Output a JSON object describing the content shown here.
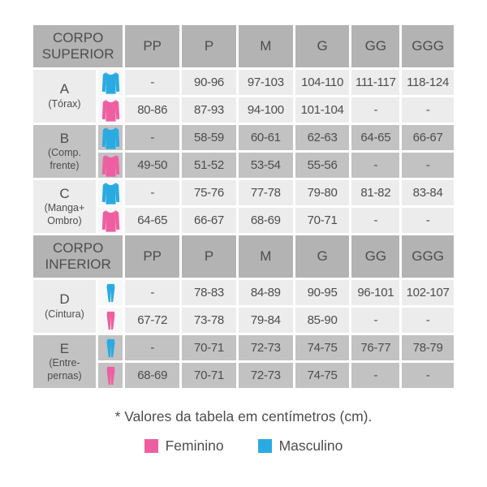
{
  "chart_data": {
    "type": "table",
    "sizes": [
      "PP",
      "P",
      "M",
      "G",
      "GG",
      "GGG"
    ],
    "sections": [
      {
        "header": "CORPO SUPERIOR",
        "rows": [
          {
            "letter": "A",
            "sub": "(Tórax)",
            "garment": "long-sleeve-shirt",
            "masculino": [
              "-",
              "90-96",
              "97-103",
              "104-110",
              "111-117",
              "118-124"
            ],
            "feminino": [
              "80-86",
              "87-93",
              "94-100",
              "101-104",
              "-",
              "-"
            ]
          },
          {
            "letter": "B",
            "sub": "(Comp.\nfrente)",
            "garment": "long-sleeve-shirt",
            "masculino": [
              "-",
              "58-59",
              "60-61",
              "62-63",
              "64-65",
              "66-67"
            ],
            "feminino": [
              "49-50",
              "51-52",
              "53-54",
              "55-56",
              "-",
              "-"
            ]
          },
          {
            "letter": "C",
            "sub": "(Manga+\nOmbro)",
            "garment": "long-sleeve-shirt",
            "masculino": [
              "-",
              "75-76",
              "77-78",
              "79-80",
              "81-82",
              "83-84"
            ],
            "feminino": [
              "64-65",
              "66-67",
              "68-69",
              "70-71",
              "-",
              "-"
            ]
          }
        ]
      },
      {
        "header": "CORPO INFERIOR",
        "rows": [
          {
            "letter": "D",
            "sub": "(Cintura)",
            "garment": "leggings",
            "masculino": [
              "-",
              "78-83",
              "84-89",
              "90-95",
              "96-101",
              "102-107"
            ],
            "feminino": [
              "67-72",
              "73-78",
              "79-84",
              "85-90",
              "-",
              "-"
            ]
          },
          {
            "letter": "E",
            "sub": "(Entre-\npernas)",
            "garment": "leggings",
            "masculino": [
              "-",
              "70-71",
              "72-73",
              "74-75",
              "76-77",
              "78-79"
            ],
            "feminino": [
              "68-69",
              "70-71",
              "72-73",
              "74-75",
              "-",
              "-"
            ]
          }
        ]
      }
    ],
    "footnote": "* Valores da tabela em centímetros (cm).",
    "legend": [
      {
        "label": "Feminino",
        "color": "#ee5fa1"
      },
      {
        "label": "Masculino",
        "color": "#29abe2"
      }
    ]
  },
  "colors": {
    "feminino": "#ee5fa1",
    "masculino": "#29abe2",
    "header_bg": "#b3b3b3",
    "row_light": "#ececec",
    "row_dark": "#c2c2c2",
    "icon_cell_light": "#f7f7f7",
    "text": "#4d4d4d"
  }
}
